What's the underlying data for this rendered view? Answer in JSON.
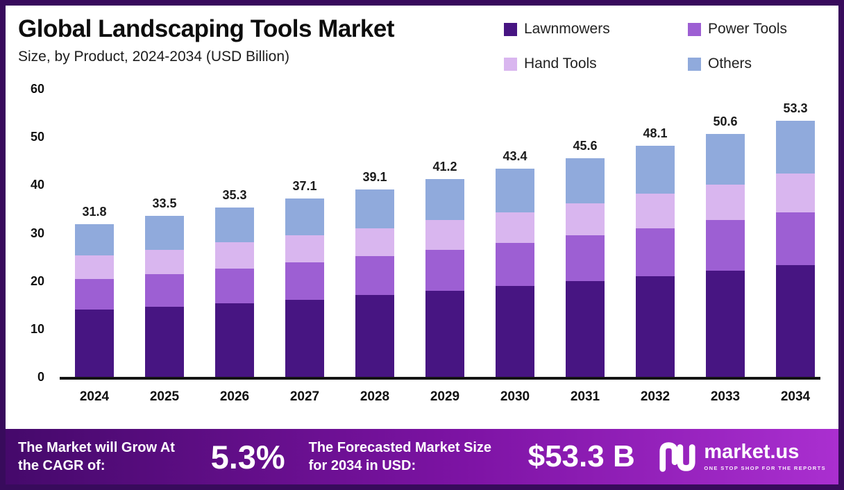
{
  "header": {
    "title": "Global Landscaping Tools Market",
    "subtitle": "Size, by Product, 2024-2034 (USD Billion)"
  },
  "colors": {
    "frame": "#380b5c",
    "footer_gradient_start": "#45096b",
    "footer_gradient_end": "#aa2fd0"
  },
  "chart_data": {
    "type": "bar",
    "stacked": true,
    "grid": false,
    "legend_position": "top-right",
    "categories": [
      "2024",
      "2025",
      "2026",
      "2027",
      "2028",
      "2029",
      "2030",
      "2031",
      "2032",
      "2033",
      "2034"
    ],
    "series": [
      {
        "name": "Lawnmowers",
        "color": "#471582",
        "values": [
          14.0,
          14.6,
          15.3,
          16.1,
          17.0,
          17.9,
          18.9,
          19.9,
          21.0,
          22.1,
          23.3
        ]
      },
      {
        "name": "Power Tools",
        "color": "#9d5fd3",
        "values": [
          6.4,
          6.8,
          7.2,
          7.7,
          8.1,
          8.6,
          9.0,
          9.6,
          10.0,
          10.6,
          11.0
        ]
      },
      {
        "name": "Hand Tools",
        "color": "#d9b6ef",
        "values": [
          4.9,
          5.1,
          5.5,
          5.7,
          5.9,
          6.2,
          6.4,
          6.7,
          7.1,
          7.4,
          8.0
        ]
      },
      {
        "name": "Others",
        "color": "#90aadc",
        "values": [
          6.5,
          7.0,
          7.3,
          7.6,
          8.1,
          8.5,
          9.1,
          9.4,
          10.0,
          10.5,
          11.0
        ]
      }
    ],
    "totals": [
      31.8,
      33.5,
      35.3,
      37.1,
      39.1,
      41.2,
      43.4,
      45.6,
      48.1,
      50.6,
      53.3
    ],
    "ylabel": "",
    "xlabel": "",
    "ylim": [
      0,
      60
    ],
    "yticks": [
      0,
      10,
      20,
      30,
      40,
      50,
      60
    ]
  },
  "footer": {
    "cagr_label": "The Market will Grow At the CAGR of:",
    "cagr_value": "5.3%",
    "forecast_label": "The Forecasted Market Size for 2034 in USD:",
    "forecast_value": "$53.3 B",
    "brand": "market.us",
    "brand_tagline": "ONE STOP SHOP FOR THE REPORTS"
  }
}
